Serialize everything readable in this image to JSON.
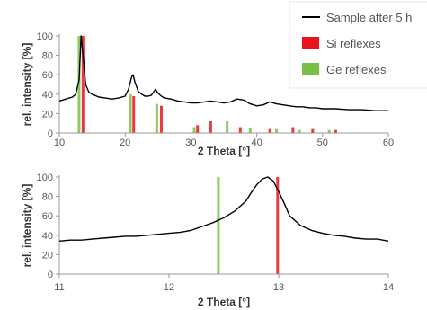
{
  "chart_data": [
    {
      "type": "line",
      "xlabel": "2 Theta [°]",
      "ylabel": "rel. intensity [%]",
      "xlim": [
        10,
        60
      ],
      "ylim": [
        0,
        100
      ],
      "xticks": [
        10,
        20,
        30,
        40,
        50,
        60
      ],
      "yticks": [
        0,
        20,
        40,
        60,
        80,
        100
      ],
      "series": [
        {
          "name": "Sample after 5 h",
          "color": "#000000",
          "x": [
            10,
            11,
            12,
            12.5,
            13,
            13.3,
            13.6,
            14,
            14.5,
            15,
            16,
            17,
            18,
            19,
            20,
            20.5,
            21,
            21.2,
            21.5,
            22,
            22.5,
            23,
            23.5,
            24,
            24.6,
            25,
            25.5,
            26,
            27,
            28,
            29,
            30,
            31,
            32,
            33,
            34,
            35,
            36,
            37,
            38,
            39,
            40,
            41,
            42,
            43,
            44,
            45,
            46,
            47,
            48,
            49,
            50,
            52,
            54,
            56,
            58,
            60
          ],
          "y": [
            33,
            35,
            37,
            40,
            55,
            100,
            80,
            50,
            42,
            40,
            37,
            36,
            35,
            36,
            38,
            45,
            58,
            60,
            52,
            43,
            40,
            38,
            38,
            39,
            45,
            41,
            38,
            36,
            35,
            33,
            32,
            31,
            31,
            32,
            33,
            32,
            31,
            32,
            35,
            34,
            30,
            28,
            29,
            32,
            30,
            29,
            28,
            27,
            27,
            26,
            26,
            25,
            25,
            24,
            24,
            23,
            23
          ]
        }
      ],
      "reflexes": [
        {
          "name": "Si reflexes",
          "color": "#e8141c",
          "x": [
            13.6,
            21.3,
            25.5,
            31.0,
            33.0,
            37.5,
            42.0,
            45.5,
            48.5,
            52.0
          ],
          "y": [
            100,
            38,
            28,
            8,
            12,
            6,
            4,
            6,
            4,
            3
          ]
        },
        {
          "name": "Ge reflexes",
          "color": "#7ac143",
          "x": [
            13.0,
            20.8,
            24.8,
            30.5,
            35.5,
            39.0,
            43.0,
            46.5,
            51.0
          ],
          "y": [
            100,
            40,
            30,
            6,
            12,
            5,
            4,
            3,
            3
          ]
        }
      ]
    },
    {
      "type": "line",
      "xlabel": "2 Theta [°]",
      "ylabel": "rel. intensity [%]",
      "xlim": [
        11,
        14
      ],
      "ylim": [
        0,
        100
      ],
      "xticks": [
        11,
        12,
        13,
        14
      ],
      "yticks": [
        0,
        20,
        40,
        60,
        80,
        100
      ],
      "series": [
        {
          "name": "Sample after 5 h",
          "color": "#000000",
          "x": [
            11.0,
            11.1,
            11.2,
            11.3,
            11.4,
            11.5,
            11.6,
            11.7,
            11.8,
            11.9,
            12.0,
            12.1,
            12.2,
            12.3,
            12.4,
            12.5,
            12.6,
            12.7,
            12.75,
            12.8,
            12.85,
            12.9,
            12.95,
            13.0,
            13.05,
            13.1,
            13.2,
            13.3,
            13.4,
            13.5,
            13.6,
            13.7,
            13.8,
            13.9,
            14.0
          ],
          "y": [
            34,
            35,
            35,
            36,
            37,
            38,
            39,
            39,
            40,
            41,
            42,
            43,
            45,
            49,
            53,
            58,
            65,
            75,
            84,
            92,
            98,
            100,
            96,
            85,
            73,
            60,
            50,
            45,
            42,
            40,
            39,
            37,
            36,
            36,
            34
          ]
        }
      ],
      "reflexes": [
        {
          "name": "Ge reflexes",
          "color": "#7ac143",
          "x": [
            12.45
          ],
          "y": [
            100
          ]
        },
        {
          "name": "Si reflexes",
          "color": "#e8141c",
          "x": [
            12.99
          ],
          "y": [
            100
          ]
        }
      ]
    }
  ],
  "legend": [
    {
      "label": "Sample after 5 h",
      "color": "#000000",
      "swatch": "line"
    },
    {
      "label": "Si reflexes",
      "color": "#e8141c",
      "swatch": "box"
    },
    {
      "label": "Ge reflexes",
      "color": "#7ac143",
      "swatch": "box"
    }
  ]
}
